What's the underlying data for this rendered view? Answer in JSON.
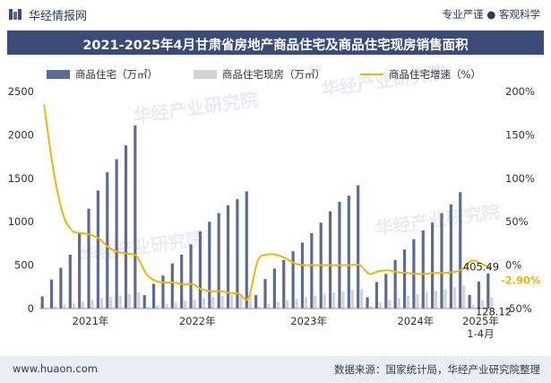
{
  "header": {
    "brand": "华经情报网",
    "tagline": "专业严谨 ● 客观科学"
  },
  "footer": {
    "website": "www.huaon.com",
    "source": "数据来源：国家统计局，华经产业研究院整理"
  },
  "watermark": "华经产业研究院",
  "colors": {
    "sales_bar": "#5b6c94",
    "existing_bar": "#d3d3d3",
    "growth_line": "#f2b700",
    "title_bg": "#3b4b78",
    "footer_bg": "#e9edf4",
    "negative_label": "#f2b700"
  },
  "chart_data": {
    "type": "bar",
    "title": "2021-2025年4月甘肃省房地产商品住宅及商品住宅现房销售面积",
    "series": [
      {
        "name": "商品住宅（万㎡）",
        "type": "bar",
        "axis": "left",
        "values": [
          140,
          335,
          470,
          620,
          870,
          1150,
          1360,
          1570,
          1720,
          1880,
          2110,
          155,
          285,
          380,
          520,
          620,
          740,
          890,
          1000,
          1100,
          1190,
          1260,
          1350,
          155,
          340,
          460,
          560,
          660,
          760,
          870,
          990,
          1120,
          1230,
          1300,
          1420,
          130,
          305,
          400,
          560,
          680,
          800,
          900,
          990,
          1100,
          1200,
          1340,
          155,
          310,
          405.49
        ]
      },
      {
        "name": "商品住宅现房（万㎡）",
        "type": "bar",
        "axis": "left",
        "values": [
          8,
          25,
          45,
          60,
          80,
          100,
          120,
          135,
          150,
          165,
          185,
          20,
          40,
          55,
          70,
          90,
          105,
          120,
          135,
          150,
          160,
          170,
          180,
          25,
          55,
          75,
          95,
          115,
          130,
          150,
          170,
          185,
          200,
          215,
          225,
          30,
          70,
          95,
          120,
          145,
          165,
          185,
          205,
          225,
          245,
          265,
          45,
          95,
          128.12
        ]
      },
      {
        "name": "商品住宅增速（%）",
        "type": "line",
        "axis": "right",
        "values": [
          185,
          110,
          60,
          40,
          37,
          35,
          30,
          20,
          15,
          13,
          10,
          -10,
          -18,
          -20,
          -20,
          -22,
          -22,
          -28,
          -30,
          -30,
          -32,
          -33,
          -38,
          5,
          12,
          12,
          8,
          2,
          0,
          0,
          0,
          0,
          0,
          0,
          0,
          -10,
          -7,
          -6,
          -8,
          -9,
          -10,
          -10,
          -9,
          -9,
          -8,
          -5,
          5,
          2,
          -2.9
        ]
      }
    ],
    "x_tick_labels": [
      "2021年",
      "2022年",
      "2023年",
      "2024年",
      "2025年\n1-4月"
    ],
    "y_left": {
      "ticks": [
        "0",
        "500",
        "1000",
        "1500",
        "2000",
        "2500"
      ],
      "range": [
        0,
        2500
      ]
    },
    "y_right": {
      "ticks": [
        "-50%",
        "0%",
        "50%",
        "100%",
        "150%",
        "200%"
      ],
      "range": [
        -50,
        200
      ]
    },
    "data_labels": {
      "last_sales": "405.49",
      "last_existing": "128.12",
      "last_growth": "-2.90%"
    },
    "legend_position": "top"
  }
}
